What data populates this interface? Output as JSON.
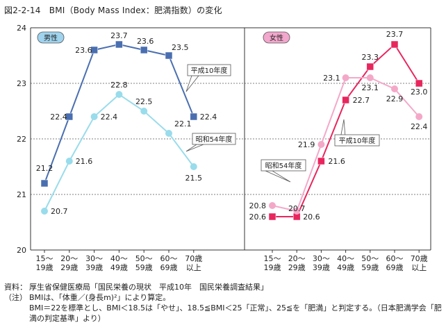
{
  "figure_title": "図2-2-14　BMI（Body Mass Index：肥満指数）の変化",
  "notes": {
    "source_label": "資料：",
    "source_text": "厚生省保健医療局「国民栄養の現状　平成10年　国民栄養調査結果」",
    "note_label": "（注）",
    "note_line1": "BMIは、「体重／(身長m)²」により算定。",
    "note_line2": "BMI＝22を標準とし、BMI＜18.5は「やせ」、18.5≦BMI＜25「正常」、25≦を「肥満」と判定する。（日本肥満学会「肥満の判定基準」より）"
  },
  "colors": {
    "h10": "#4a6fb0",
    "s54_male": "#99dceb",
    "h10_female": "#e8265e",
    "s54_female": "#f4a8c8",
    "male_badge": "#9fd3ee",
    "female_badge": "#f2a7cc",
    "grid": "#555555"
  },
  "chart_data": [
    {
      "type": "line",
      "panel_label": "男性",
      "categories": [
        "15～19歳",
        "20～29歳",
        "30～39歳",
        "40～49歳",
        "50～59歳",
        "60～69歳",
        "70歳以上"
      ],
      "ylim": [
        20,
        24
      ],
      "yticks": [
        20,
        21,
        22,
        23,
        24
      ],
      "series": [
        {
          "name": "平成10年度",
          "values": [
            21.2,
            22.4,
            23.6,
            23.7,
            23.6,
            23.5,
            22.4
          ]
        },
        {
          "name": "昭和54年度",
          "values": [
            20.7,
            21.6,
            22.4,
            22.8,
            22.5,
            22.1,
            21.5
          ]
        }
      ]
    },
    {
      "type": "line",
      "panel_label": "女性",
      "categories": [
        "15～19歳",
        "20～29歳",
        "30～39歳",
        "40～49歳",
        "50～59歳",
        "60～69歳",
        "70歳以上"
      ],
      "ylim": [
        20,
        24
      ],
      "series": [
        {
          "name": "平成10年度",
          "values": [
            20.6,
            20.6,
            21.6,
            22.7,
            23.3,
            23.7,
            23.0
          ]
        },
        {
          "name": "昭和54年度",
          "values": [
            20.8,
            20.7,
            21.9,
            23.1,
            23.1,
            22.9,
            22.4
          ]
        }
      ]
    }
  ]
}
